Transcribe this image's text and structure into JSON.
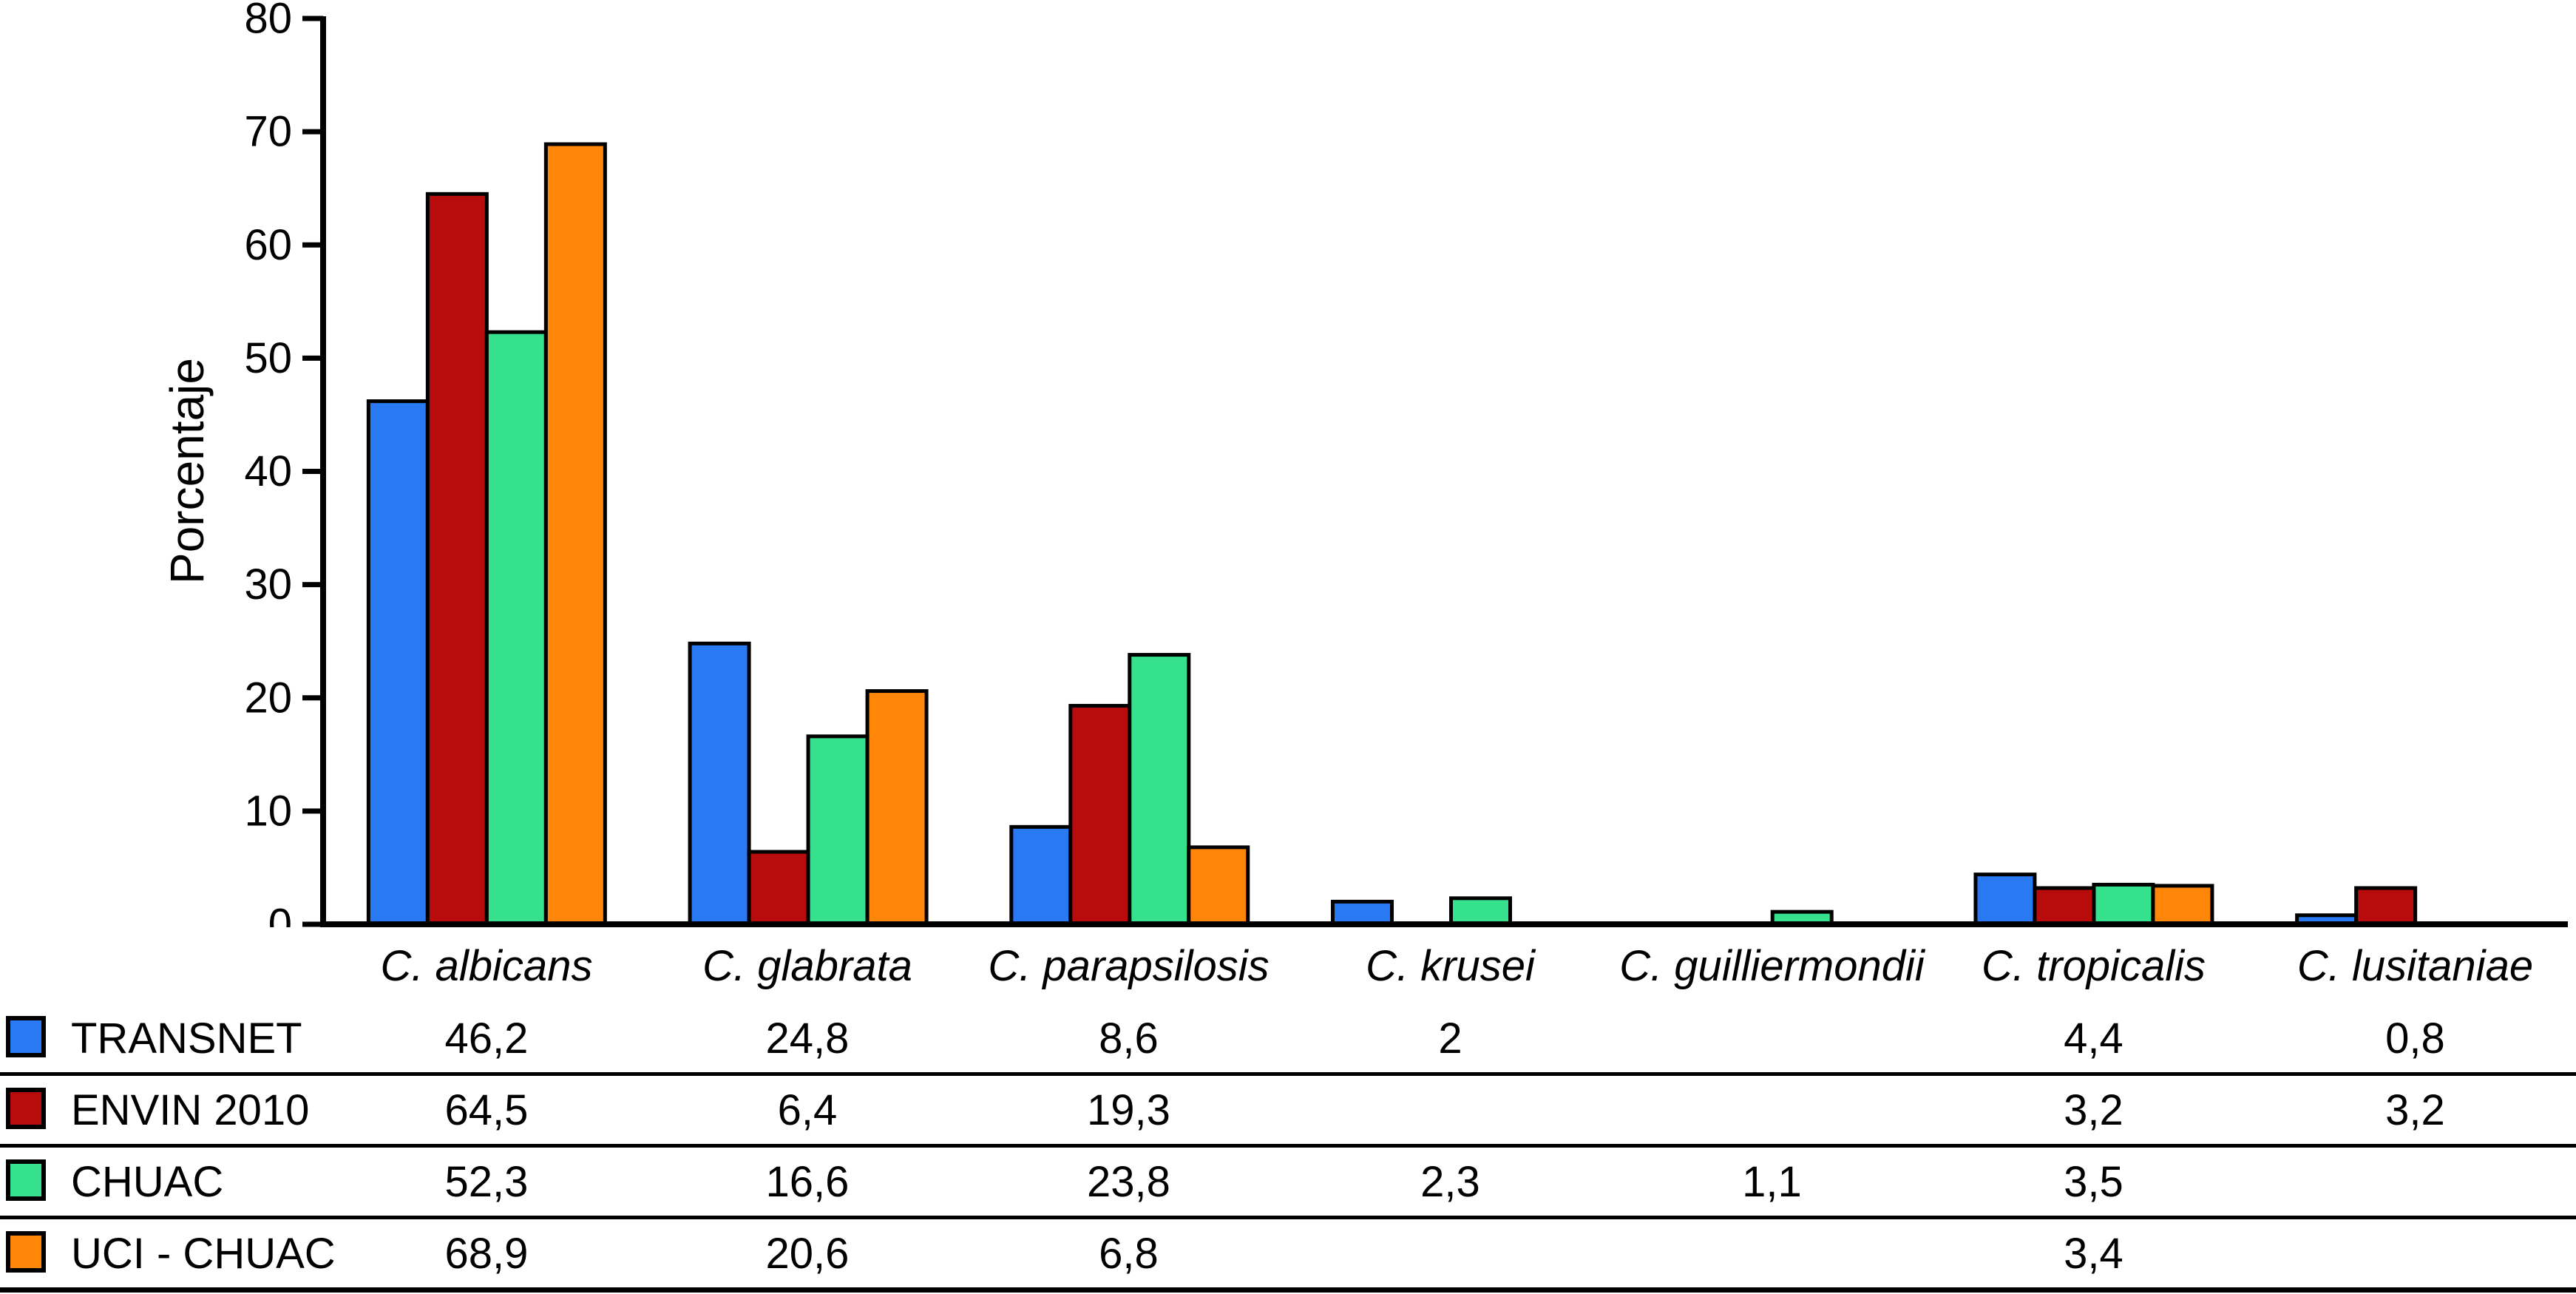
{
  "chart_data": {
    "type": "bar",
    "title": "",
    "ylabel": "Porcentaje",
    "xlabel": "",
    "ylim": [
      0,
      80
    ],
    "yticks": [
      0,
      10,
      20,
      30,
      40,
      50,
      60,
      70,
      80
    ],
    "grid": false,
    "legend_position": "table-below",
    "categories": [
      "C. albicans",
      "C. glabrata",
      "C. parapsilosis",
      "C. krusei",
      "C. guilliermondii",
      "C. tropicalis",
      "C. lusitaniae"
    ],
    "series": [
      {
        "name": "TRANSNET",
        "color": "#2879F2",
        "values": [
          46.2,
          24.8,
          8.6,
          2,
          null,
          4.4,
          0.8
        ]
      },
      {
        "name": "ENVIN 2010",
        "color": "#B80B0B",
        "values": [
          64.5,
          6.4,
          19.3,
          null,
          null,
          3.2,
          3.2
        ]
      },
      {
        "name": "CHUAC",
        "color": "#35E18C",
        "values": [
          52.3,
          16.6,
          23.8,
          2.3,
          1.1,
          3.5,
          null
        ]
      },
      {
        "name": "UCI - CHUAC",
        "color": "#FF8608",
        "values": [
          68.9,
          20.6,
          6.8,
          null,
          null,
          3.4,
          null
        ]
      }
    ]
  },
  "table": {
    "corner_label": "",
    "rows": [
      {
        "label": "TRANSNET",
        "values": [
          "46,2",
          "24,8",
          "8,6",
          "2",
          "",
          "4,4",
          "0,8"
        ]
      },
      {
        "label": "ENVIN 2010",
        "values": [
          "64,5",
          "6,4",
          "19,3",
          "",
          "",
          "3,2",
          "3,2"
        ]
      },
      {
        "label": "CHUAC",
        "values": [
          "52,3",
          "16,6",
          "23,8",
          "2,3",
          "1,1",
          "3,5",
          ""
        ]
      },
      {
        "label": "UCI - CHUAC",
        "values": [
          "68,9",
          "20,6",
          "6,8",
          "",
          "",
          "3,4",
          ""
        ]
      }
    ]
  }
}
